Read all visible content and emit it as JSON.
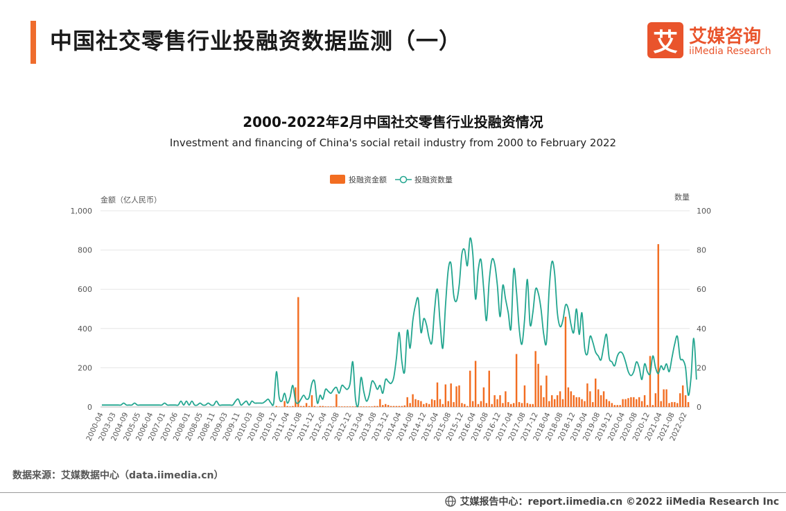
{
  "header": {
    "title": "中国社交零售行业投融资数据监测（一）"
  },
  "logo": {
    "mark": "艾",
    "cn": "艾媒咨询",
    "en": "iiMedia Research"
  },
  "chart_data": {
    "type": "bar",
    "title": "2000-2022年2月中国社交零售行业投融资情况",
    "subtitle": "Investment and financing of China's social retail industry from 2000 to February 2022",
    "left_axis_label": "金额（亿人民币）",
    "right_axis_label": "数量",
    "ylim_left": [
      0,
      1000
    ],
    "ylim_right": [
      0,
      100
    ],
    "left_ticks": [
      "0",
      "200",
      "400",
      "600",
      "800",
      "1,000"
    ],
    "right_ticks": [
      "0",
      "20",
      "40",
      "60",
      "80",
      "100"
    ],
    "grid": true,
    "legend_position": "top-center",
    "x_tick_labels": [
      "2000-04",
      "2003-03",
      "2004-09",
      "2005-05",
      "2006-04",
      "2007-01",
      "2007-06",
      "2008-01",
      "2008-05",
      "2008-11",
      "2009-03",
      "2009-11",
      "2010-03",
      "2010-08",
      "2010-12",
      "2011-04",
      "2011-08",
      "2011-12",
      "2012-04",
      "2012-08",
      "2012-12",
      "2013-04",
      "2013-08",
      "2013-12",
      "2014-04",
      "2014-08",
      "2014-12",
      "2015-04",
      "2015-08",
      "2015-12",
      "2016-04",
      "2016-08",
      "2016-12",
      "2017-04",
      "2017-08",
      "2017-12",
      "2018-04",
      "2018-08",
      "2018-12",
      "2019-04",
      "2019-08",
      "2019-12",
      "2020-04",
      "2020-08",
      "2020-12",
      "2021-04",
      "2021-08",
      "2022-02"
    ],
    "series": [
      {
        "name": "投融资金额",
        "axis": "left",
        "kind": "bar",
        "color": "#f26d21",
        "values": [
          0,
          0,
          0,
          0,
          0,
          0,
          0,
          0,
          0,
          0,
          0,
          0,
          0,
          0,
          0,
          0,
          0,
          0,
          0,
          0,
          0,
          0,
          0,
          0,
          0,
          0,
          0,
          0,
          0,
          0,
          0,
          0,
          0,
          0,
          0,
          0,
          0,
          0,
          0,
          0,
          0,
          0,
          0,
          0,
          0,
          0,
          0,
          0,
          0,
          0,
          0,
          0,
          0,
          0,
          0,
          0,
          0,
          0,
          0,
          0,
          0,
          0,
          0,
          0,
          5,
          2,
          2,
          30,
          5,
          3,
          5,
          100,
          560,
          5,
          5,
          20,
          5,
          60,
          5,
          2,
          5,
          5,
          3,
          3,
          3,
          3,
          65,
          3,
          3,
          3,
          3,
          3,
          3,
          3,
          3,
          3,
          3,
          3,
          3,
          3,
          5,
          5,
          40,
          10,
          15,
          10,
          5,
          5,
          5,
          5,
          5,
          8,
          50,
          20,
          65,
          40,
          35,
          30,
          15,
          20,
          15,
          40,
          35,
          125,
          40,
          15,
          115,
          30,
          120,
          25,
          105,
          110,
          20,
          15,
          5,
          185,
          30,
          235,
          15,
          30,
          100,
          20,
          185,
          15,
          60,
          40,
          60,
          20,
          80,
          25,
          15,
          20,
          270,
          25,
          20,
          110,
          20,
          15,
          15,
          285,
          220,
          110,
          50,
          160,
          30,
          60,
          40,
          60,
          80,
          40,
          460,
          100,
          80,
          60,
          50,
          50,
          40,
          30,
          120,
          80,
          25,
          145,
          90,
          60,
          80,
          40,
          30,
          20,
          10,
          10,
          10,
          40,
          40,
          45,
          50,
          50,
          40,
          50,
          30,
          60,
          10,
          260,
          10,
          70,
          830,
          30,
          90,
          90,
          20,
          25,
          25,
          20,
          70,
          110,
          60,
          25
        ]
      },
      {
        "name": "投融资数量",
        "axis": "right",
        "kind": "line",
        "color": "#22a58f",
        "values": [
          1,
          1,
          1,
          1,
          1,
          1,
          1,
          1,
          2,
          1,
          1,
          1,
          2,
          1,
          1,
          1,
          1,
          1,
          1,
          1,
          1,
          1,
          1,
          2,
          1,
          1,
          1,
          1,
          1,
          3,
          1,
          3,
          1,
          3,
          1,
          1,
          2,
          1,
          1,
          2,
          1,
          1,
          3,
          1,
          1,
          1,
          1,
          1,
          1,
          3,
          4,
          1,
          2,
          3,
          1,
          3,
          2,
          2,
          2,
          2,
          3,
          4,
          2,
          2,
          18,
          5,
          3,
          7,
          2,
          5,
          11,
          3,
          2,
          4,
          6,
          4,
          5,
          12,
          13,
          2,
          6,
          4,
          9,
          8,
          7,
          9,
          10,
          7,
          11,
          10,
          9,
          12,
          23,
          4,
          1,
          15,
          8,
          3,
          6,
          13,
          12,
          9,
          11,
          7,
          14,
          13,
          12,
          15,
          25,
          38,
          23,
          18,
          39,
          30,
          44,
          52,
          55,
          38,
          45,
          42,
          35,
          33,
          50,
          60,
          43,
          30,
          52,
          70,
          73,
          57,
          54,
          62,
          78,
          80,
          72,
          86,
          78,
          55,
          70,
          75,
          60,
          44,
          64,
          75,
          73,
          62,
          46,
          62,
          55,
          48,
          40,
          70,
          59,
          40,
          32,
          45,
          65,
          42,
          48,
          60,
          58,
          50,
          37,
          33,
          60,
          74,
          68,
          48,
          41,
          44,
          52,
          50,
          42,
          38,
          50,
          37,
          48,
          30,
          27,
          36,
          33,
          28,
          26,
          24,
          31,
          37,
          25,
          23,
          21,
          26,
          28,
          27,
          23,
          18,
          16,
          18,
          23,
          20,
          14,
          22,
          18,
          17,
          26,
          20,
          17,
          21,
          19,
          22,
          18,
          25,
          32,
          36,
          25,
          24,
          20,
          6,
          15,
          35,
          14
        ]
      }
    ]
  },
  "footer": {
    "source": "数据来源：艾媒数据中心（data.iimedia.cn）",
    "copyright": "艾媒报告中心：report.iimedia.cn   ©2022  iiMedia Research  Inc"
  }
}
